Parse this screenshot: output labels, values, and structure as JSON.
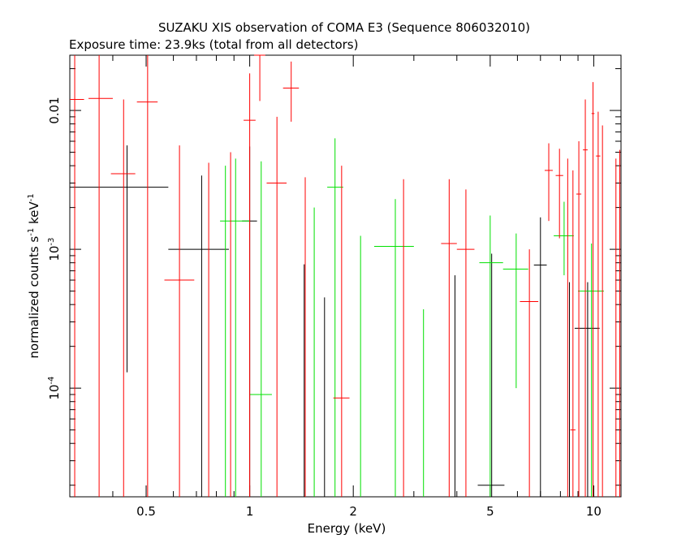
{
  "chart_data": {
    "type": "scatter",
    "title": "SUZAKU XIS observation of COMA E3 (Sequence 806032010)",
    "subtitle": "Exposure time: 23.9ks (total from all detectors)",
    "xlabel": "Energy (keV)",
    "ylabel_main": "normalized counts s",
    "ylabel_sup1": "-1",
    "ylabel_mid": " keV",
    "ylabel_sup2": "-1",
    "x_scale": "log",
    "y_scale": "log",
    "xlim": [
      0.3,
      12
    ],
    "ylim": [
      1.65e-05,
      0.025
    ],
    "x_ticks": [
      {
        "v": 0.5,
        "label": "0.5"
      },
      {
        "v": 1,
        "label": "1"
      },
      {
        "v": 2,
        "label": "2"
      },
      {
        "v": 5,
        "label": "5"
      },
      {
        "v": 10,
        "label": "10"
      }
    ],
    "y_ticks": [
      {
        "v": 0.01,
        "base": "0.01",
        "exp": ""
      },
      {
        "v": 0.001,
        "base": "10",
        "exp": "-3"
      },
      {
        "v": 0.0001,
        "base": "10",
        "exp": "-4"
      }
    ],
    "grid": false,
    "series": [
      {
        "color": "#000000",
        "points": [
          {
            "x": 0.44,
            "xlo": 0.3,
            "xhi": 0.58,
            "y": 0.0028,
            "ylo": 0.00013,
            "yhi": 0.0056
          },
          {
            "x": 0.725,
            "xlo": 0.58,
            "xhi": 0.87,
            "y": 0.001,
            "ylo": 1.65e-05,
            "yhi": 0.0034
          },
          {
            "x": 1.0,
            "xlo": 0.95,
            "xhi": 1.05,
            "y": 0.0016,
            "ylo": 1.65e-05,
            "yhi": 0.0055
          },
          {
            "x": 1.44,
            "xlo": 1.44,
            "xhi": 1.44,
            "y": 0.0003,
            "ylo": 1.65e-05,
            "yhi": 0.00078
          },
          {
            "x": 1.65,
            "xlo": 1.65,
            "xhi": 1.65,
            "y": 0.0002,
            "ylo": 1.65e-05,
            "yhi": 0.00045
          },
          {
            "x": 3.95,
            "xlo": 3.95,
            "xhi": 3.95,
            "y": 0.0003,
            "ylo": 1.65e-05,
            "yhi": 0.00065
          },
          {
            "x": 5.05,
            "xlo": 4.6,
            "xhi": 5.5,
            "y": 2e-05,
            "ylo": 1.65e-05,
            "yhi": 0.00093
          },
          {
            "x": 7.0,
            "xlo": 6.7,
            "xhi": 7.3,
            "y": 0.00077,
            "ylo": 1.65e-05,
            "yhi": 0.0017
          },
          {
            "x": 9.6,
            "xlo": 8.8,
            "xhi": 10.4,
            "y": 0.00027,
            "ylo": 1.65e-05,
            "yhi": 0.00058
          },
          {
            "x": 8.5,
            "xlo": 8.5,
            "xhi": 8.5,
            "y": 0.0002,
            "ylo": 1.65e-05,
            "yhi": 0.00058
          }
        ]
      },
      {
        "color": "#00e000",
        "points": [
          {
            "x": 0.91,
            "xlo": 0.82,
            "xhi": 1.0,
            "y": 0.0016,
            "ylo": 1.65e-05,
            "yhi": 0.0045
          },
          {
            "x": 0.85,
            "xlo": 0.85,
            "xhi": 0.85,
            "y": 0.0016,
            "ylo": 1.65e-05,
            "yhi": 0.004
          },
          {
            "x": 1.08,
            "xlo": 1.0,
            "xhi": 1.16,
            "y": 9e-05,
            "ylo": 1.65e-05,
            "yhi": 0.0043
          },
          {
            "x": 1.54,
            "xlo": 1.54,
            "xhi": 1.54,
            "y": 0.0006,
            "ylo": 1.65e-05,
            "yhi": 0.002
          },
          {
            "x": 1.77,
            "xlo": 1.68,
            "xhi": 1.87,
            "y": 0.0028,
            "ylo": 1.65e-05,
            "yhi": 0.0063
          },
          {
            "x": 2.1,
            "xlo": 2.1,
            "xhi": 2.1,
            "y": 0.0005,
            "ylo": 1.65e-05,
            "yhi": 0.00125
          },
          {
            "x": 2.65,
            "xlo": 2.3,
            "xhi": 3.0,
            "y": 0.00105,
            "ylo": 1.65e-05,
            "yhi": 0.0023
          },
          {
            "x": 3.2,
            "xlo": 3.2,
            "xhi": 3.2,
            "y": 0.00015,
            "ylo": 1.65e-05,
            "yhi": 0.00037
          },
          {
            "x": 5.0,
            "xlo": 4.65,
            "xhi": 5.45,
            "y": 0.0008,
            "ylo": 1.65e-05,
            "yhi": 0.00175
          },
          {
            "x": 5.95,
            "xlo": 5.45,
            "xhi": 6.45,
            "y": 0.00072,
            "ylo": 0.0001,
            "yhi": 0.0013
          },
          {
            "x": 8.2,
            "xlo": 7.65,
            "xhi": 8.75,
            "y": 0.00125,
            "ylo": 0.00065,
            "yhi": 0.0022
          },
          {
            "x": 9.85,
            "xlo": 9.0,
            "xhi": 10.7,
            "y": 0.0005,
            "ylo": 1.65e-05,
            "yhi": 0.0011
          }
        ]
      },
      {
        "color": "#ff0000",
        "points": [
          {
            "x": 0.31,
            "xlo": 0.3,
            "xhi": 0.33,
            "y": 0.012,
            "ylo": 1.65e-05,
            "yhi": 0.025
          },
          {
            "x": 0.365,
            "xlo": 0.34,
            "xhi": 0.4,
            "y": 0.0122,
            "ylo": 1.65e-05,
            "yhi": 0.025
          },
          {
            "x": 0.43,
            "xlo": 0.395,
            "xhi": 0.465,
            "y": 0.0035,
            "ylo": 1.65e-05,
            "yhi": 0.012
          },
          {
            "x": 0.505,
            "xlo": 0.47,
            "xhi": 0.54,
            "y": 0.0115,
            "ylo": 1.65e-05,
            "yhi": 0.025
          },
          {
            "x": 0.625,
            "xlo": 0.565,
            "xhi": 0.69,
            "y": 0.0006,
            "ylo": 1.65e-05,
            "yhi": 0.0056
          },
          {
            "x": 0.76,
            "xlo": 0.76,
            "xhi": 0.76,
            "y": 0.0016,
            "ylo": 1.65e-05,
            "yhi": 0.0042
          },
          {
            "x": 0.88,
            "xlo": 0.88,
            "xhi": 0.88,
            "y": 0.0016,
            "ylo": 1.65e-05,
            "yhi": 0.005
          },
          {
            "x": 1.0,
            "xlo": 0.96,
            "xhi": 1.04,
            "y": 0.0085,
            "ylo": 1.65e-05,
            "yhi": 0.0185
          },
          {
            "x": 1.07,
            "xlo": 1.03,
            "xhi": 1.11,
            "y": 0.025,
            "ylo": 0.0117,
            "yhi": 0.025
          },
          {
            "x": 1.2,
            "xlo": 1.12,
            "xhi": 1.28,
            "y": 0.003,
            "ylo": 1.65e-05,
            "yhi": 0.009
          },
          {
            "x": 1.32,
            "xlo": 1.25,
            "xhi": 1.39,
            "y": 0.0145,
            "ylo": 0.0083,
            "yhi": 0.0225
          },
          {
            "x": 1.45,
            "xlo": 1.45,
            "xhi": 1.45,
            "y": 0.0012,
            "ylo": 1.65e-05,
            "yhi": 0.0033
          },
          {
            "x": 1.85,
            "xlo": 1.75,
            "xhi": 1.95,
            "y": 8.5e-05,
            "ylo": 1.65e-05,
            "yhi": 0.004
          },
          {
            "x": 2.8,
            "xlo": 2.8,
            "xhi": 2.8,
            "y": 0.001,
            "ylo": 1.65e-05,
            "yhi": 0.0032
          },
          {
            "x": 3.8,
            "xlo": 3.6,
            "xhi": 4.0,
            "y": 0.0011,
            "ylo": 1.65e-05,
            "yhi": 0.0032
          },
          {
            "x": 4.25,
            "xlo": 4.0,
            "xhi": 4.5,
            "y": 0.001,
            "ylo": 1.65e-05,
            "yhi": 0.0027
          },
          {
            "x": 6.5,
            "xlo": 6.1,
            "xhi": 6.9,
            "y": 0.00042,
            "ylo": 1.65e-05,
            "yhi": 0.001
          },
          {
            "x": 7.4,
            "xlo": 7.2,
            "xhi": 7.6,
            "y": 0.0037,
            "ylo": 0.0016,
            "yhi": 0.0058
          },
          {
            "x": 7.95,
            "xlo": 7.75,
            "xhi": 8.15,
            "y": 0.0034,
            "ylo": 0.0012,
            "yhi": 0.0053
          },
          {
            "x": 8.4,
            "xlo": 8.4,
            "xhi": 8.4,
            "y": 0.0012,
            "ylo": 1.65e-05,
            "yhi": 0.0045
          },
          {
            "x": 8.7,
            "xlo": 8.55,
            "xhi": 8.85,
            "y": 5e-05,
            "ylo": 1.65e-05,
            "yhi": 0.0037
          },
          {
            "x": 9.05,
            "xlo": 8.9,
            "xhi": 9.2,
            "y": 0.0025,
            "ylo": 1.65e-05,
            "yhi": 0.006
          },
          {
            "x": 9.45,
            "xlo": 9.3,
            "xhi": 9.6,
            "y": 0.0052,
            "ylo": 1.65e-05,
            "yhi": 0.012
          },
          {
            "x": 9.95,
            "xlo": 9.85,
            "xhi": 10.05,
            "y": 0.0095,
            "ylo": 1.65e-05,
            "yhi": 0.016
          },
          {
            "x": 10.3,
            "xlo": 10.15,
            "xhi": 10.45,
            "y": 0.0047,
            "ylo": 1.65e-05,
            "yhi": 0.0098
          },
          {
            "x": 10.6,
            "xlo": 10.6,
            "xhi": 10.6,
            "y": 0.0038,
            "ylo": 1.65e-05,
            "yhi": 0.0078
          },
          {
            "x": 11.6,
            "xlo": 11.6,
            "xhi": 11.6,
            "y": 0.0015,
            "ylo": 1.65e-05,
            "yhi": 0.0045
          },
          {
            "x": 11.9,
            "xlo": 11.9,
            "xhi": 11.9,
            "y": 0.0015,
            "ylo": 1.65e-05,
            "yhi": 0.0052
          }
        ]
      }
    ]
  }
}
